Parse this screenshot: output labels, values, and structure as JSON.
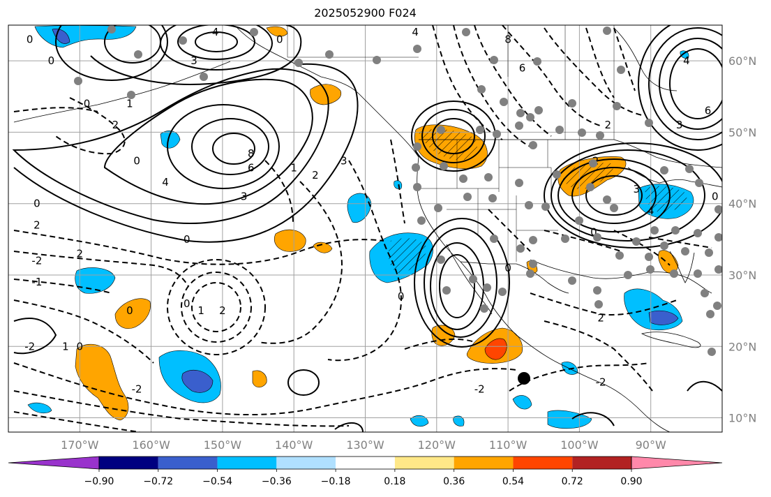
{
  "title": "2025052900 F024",
  "map": {
    "lon_range": [
      -180,
      -80
    ],
    "lat_range": [
      8,
      65
    ],
    "lon_ticks": [
      {
        "value": -170,
        "label": "170°W"
      },
      {
        "value": -160,
        "label": "160°W"
      },
      {
        "value": -150,
        "label": "150°W"
      },
      {
        "value": -140,
        "label": "140°W"
      },
      {
        "value": -130,
        "label": "130°W"
      },
      {
        "value": -120,
        "label": "120°W"
      },
      {
        "value": -110,
        "label": "110°W"
      },
      {
        "value": -100,
        "label": "100°W"
      },
      {
        "value": -90,
        "label": "90°W"
      }
    ],
    "lat_ticks": [
      {
        "value": 60,
        "label": "60°N"
      },
      {
        "value": 50,
        "label": "50°N"
      },
      {
        "value": 40,
        "label": "40°N"
      },
      {
        "value": 30,
        "label": "30°N"
      },
      {
        "value": 20,
        "label": "20°N"
      },
      {
        "value": 10,
        "label": "10°N"
      }
    ]
  },
  "colorbar": {
    "colors": [
      "#9933cc",
      "#000080",
      "#3a5fcd",
      "#00bfff",
      "#b0e0ff",
      "#ffffff",
      "#ffe888",
      "#ffa500",
      "#ff4500",
      "#b22222",
      "#ff88aa"
    ],
    "tick_labels": [
      "−0.90",
      "−0.72",
      "−0.54",
      "−0.36",
      "−0.18",
      "0.18",
      "0.36",
      "0.54",
      "0.72",
      "0.90"
    ]
  },
  "contour_labels": [
    {
      "text": "0",
      "lon": -177,
      "lat": 63
    },
    {
      "text": "0",
      "lon": -174,
      "lat": 60
    },
    {
      "text": "4",
      "lon": -151,
      "lat": 64
    },
    {
      "text": "3",
      "lon": -154,
      "lat": 60
    },
    {
      "text": "0",
      "lon": -142,
      "lat": 63
    },
    {
      "text": "4",
      "lon": -123,
      "lat": 64
    },
    {
      "text": "8",
      "lon": -110,
      "lat": 63
    },
    {
      "text": "6",
      "lon": -108,
      "lat": 59
    },
    {
      "text": "0",
      "lon": -169,
      "lat": 54
    },
    {
      "text": "1",
      "lon": -163,
      "lat": 54
    },
    {
      "text": "2",
      "lon": -165,
      "lat": 51
    },
    {
      "text": "8",
      "lon": -146,
      "lat": 47
    },
    {
      "text": "6",
      "lon": -146,
      "lat": 45
    },
    {
      "text": "4",
      "lon": -158,
      "lat": 43
    },
    {
      "text": "3",
      "lon": -147,
      "lat": 41
    },
    {
      "text": "0",
      "lon": -162,
      "lat": 46
    },
    {
      "text": "1",
      "lon": -140,
      "lat": 45
    },
    {
      "text": "2",
      "lon": -137,
      "lat": 44
    },
    {
      "text": "3",
      "lon": -133,
      "lat": 46
    },
    {
      "text": "0",
      "lon": -176,
      "lat": 40
    },
    {
      "text": "2",
      "lon": -176,
      "lat": 37
    },
    {
      "text": "0",
      "lon": -155,
      "lat": 35
    },
    {
      "text": "-2",
      "lon": -176,
      "lat": 32
    },
    {
      "text": "2",
      "lon": -170,
      "lat": 33
    },
    {
      "text": "-1",
      "lon": -176,
      "lat": 29
    },
    {
      "text": "0",
      "lon": -163,
      "lat": 25
    },
    {
      "text": "0",
      "lon": -155,
      "lat": 26
    },
    {
      "text": "1",
      "lon": -153,
      "lat": 25
    },
    {
      "text": "2",
      "lon": -150,
      "lat": 25
    },
    {
      "text": "-2",
      "lon": -177,
      "lat": 20
    },
    {
      "text": "1",
      "lon": -172,
      "lat": 20
    },
    {
      "text": "0",
      "lon": -170,
      "lat": 20
    },
    {
      "text": "-2",
      "lon": -162,
      "lat": 14
    },
    {
      "text": "0",
      "lon": -125,
      "lat": 27
    },
    {
      "text": "0",
      "lon": -110,
      "lat": 31
    },
    {
      "text": "-2",
      "lon": -114,
      "lat": 14
    },
    {
      "text": "-2",
      "lon": -97,
      "lat": 15
    },
    {
      "text": "2",
      "lon": -97,
      "lat": 24
    },
    {
      "text": "2",
      "lon": -96,
      "lat": 51
    },
    {
      "text": "-2",
      "lon": -98,
      "lat": 46
    },
    {
      "text": "3",
      "lon": -92,
      "lat": 42
    },
    {
      "text": "4",
      "lon": -90,
      "lat": 39
    },
    {
      "text": "0",
      "lon": -98,
      "lat": 36
    },
    {
      "text": "6",
      "lon": -82,
      "lat": 53
    },
    {
      "text": "3",
      "lon": -86,
      "lat": 51
    },
    {
      "text": "4",
      "lon": -85,
      "lat": 60
    },
    {
      "text": "0",
      "lon": -81,
      "lat": 41
    }
  ]
}
